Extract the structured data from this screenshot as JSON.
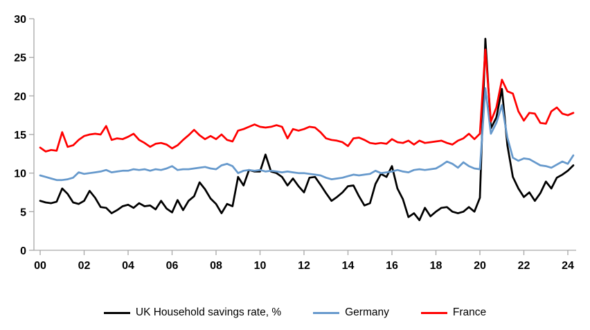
{
  "chart_data": {
    "type": "line",
    "title": "",
    "x_frequency": "quarterly",
    "x_start_year": 2000,
    "xticklabels": [
      "00",
      "02",
      "04",
      "06",
      "08",
      "10",
      "12",
      "14",
      "16",
      "18",
      "20",
      "22",
      "24"
    ],
    "yticks": [
      0,
      5,
      10,
      15,
      20,
      25,
      30
    ],
    "ylim": [
      0,
      30
    ],
    "grid": false,
    "legend_position": "bottom",
    "axis_color": "#A6A6A6",
    "series": [
      {
        "key": "uk",
        "name": "UK Household savings rate, %",
        "color": "#000000",
        "values": [
          6.4,
          6.2,
          6.1,
          6.3,
          8.0,
          7.3,
          6.2,
          6.0,
          6.4,
          7.7,
          6.8,
          5.6,
          5.5,
          4.8,
          5.2,
          5.7,
          5.9,
          5.5,
          6.1,
          5.7,
          5.8,
          5.3,
          6.4,
          5.4,
          4.9,
          6.5,
          5.2,
          6.4,
          7.0,
          8.8,
          7.9,
          6.7,
          6.0,
          4.8,
          6.0,
          5.7,
          9.5,
          8.4,
          10.4,
          10.2,
          10.2,
          12.4,
          10.2,
          10.0,
          9.5,
          8.4,
          9.3,
          8.3,
          7.5,
          9.4,
          9.5,
          8.5,
          7.4,
          6.4,
          6.9,
          7.5,
          8.3,
          8.4,
          7.0,
          5.8,
          6.1,
          8.6,
          9.9,
          9.5,
          10.9,
          8.0,
          6.6,
          4.3,
          4.8,
          3.9,
          5.5,
          4.4,
          5.0,
          5.5,
          5.6,
          5.0,
          4.8,
          5.0,
          5.6,
          5.0,
          6.8,
          27.4,
          15.8,
          17.2,
          20.9,
          13.6,
          9.5,
          8.0,
          6.9,
          7.5,
          6.4,
          7.4,
          8.9,
          8.0,
          9.4,
          9.8,
          10.3,
          11.0
        ]
      },
      {
        "key": "germany",
        "name": "Germany",
        "color": "#6699CC",
        "values": [
          9.7,
          9.5,
          9.3,
          9.1,
          9.1,
          9.2,
          9.4,
          10.1,
          9.9,
          10.0,
          10.1,
          10.2,
          10.4,
          10.1,
          10.2,
          10.3,
          10.3,
          10.5,
          10.4,
          10.5,
          10.3,
          10.5,
          10.4,
          10.6,
          10.9,
          10.4,
          10.5,
          10.5,
          10.6,
          10.7,
          10.8,
          10.6,
          10.5,
          11.0,
          11.2,
          10.9,
          10.0,
          10.3,
          10.4,
          10.3,
          10.4,
          10.2,
          10.3,
          10.2,
          10.1,
          10.2,
          10.1,
          10.0,
          10.0,
          9.9,
          9.8,
          9.7,
          9.4,
          9.2,
          9.3,
          9.4,
          9.6,
          9.8,
          9.7,
          9.8,
          9.9,
          10.3,
          10.0,
          10.1,
          10.2,
          10.4,
          10.2,
          10.1,
          10.4,
          10.5,
          10.4,
          10.5,
          10.6,
          11.0,
          11.5,
          11.2,
          10.7,
          11.4,
          10.9,
          10.6,
          10.5,
          21.0,
          15.1,
          16.5,
          18.8,
          14.6,
          12.0,
          11.6,
          11.9,
          11.8,
          11.4,
          11.0,
          10.9,
          10.7,
          11.1,
          11.5,
          11.2,
          12.3
        ]
      },
      {
        "key": "france",
        "name": "France",
        "color": "#FF0000",
        "values": [
          13.3,
          12.8,
          13.0,
          12.9,
          15.3,
          13.4,
          13.6,
          14.3,
          14.8,
          15.0,
          15.1,
          15.0,
          16.1,
          14.3,
          14.5,
          14.4,
          14.7,
          15.1,
          14.3,
          13.9,
          13.4,
          13.8,
          13.9,
          13.7,
          13.2,
          13.6,
          14.3,
          14.9,
          15.6,
          14.9,
          14.4,
          14.8,
          14.4,
          15.0,
          14.3,
          14.1,
          15.5,
          15.7,
          16.0,
          16.3,
          16.0,
          15.9,
          16.0,
          16.2,
          16.0,
          14.5,
          15.7,
          15.5,
          15.7,
          16.0,
          15.9,
          15.3,
          14.5,
          14.3,
          14.2,
          14.0,
          13.5,
          14.5,
          14.6,
          14.3,
          13.9,
          13.8,
          13.9,
          13.8,
          14.4,
          14.0,
          13.9,
          14.2,
          13.7,
          14.2,
          13.9,
          14.0,
          14.1,
          14.2,
          13.9,
          13.7,
          14.2,
          14.5,
          15.1,
          14.4,
          15.1,
          26.0,
          16.7,
          18.5,
          22.1,
          20.6,
          20.3,
          18.0,
          16.8,
          17.8,
          17.7,
          16.5,
          16.4,
          18.0,
          18.5,
          17.7,
          17.5,
          17.8
        ]
      }
    ]
  }
}
